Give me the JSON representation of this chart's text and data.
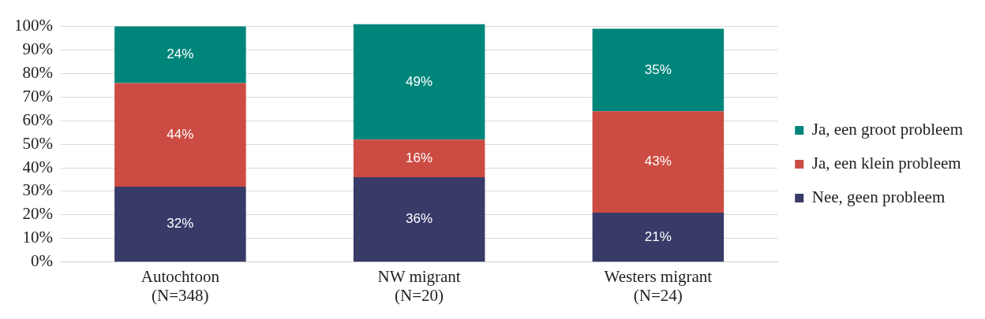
{
  "chart_data": {
    "type": "bar",
    "stacked": true,
    "categories": [
      "Autochtoon\n(N=348)",
      "NW migrant\n(N=20)",
      "Westers migrant\n(N=24)"
    ],
    "series": [
      {
        "name": "Nee, geen probleem",
        "color": "#383a68",
        "values": [
          32,
          36,
          21
        ]
      },
      {
        "name": "Ja, een klein probleem",
        "color": "#cc4b42",
        "values": [
          44,
          16,
          43
        ]
      },
      {
        "name": "Ja, een groot probleem",
        "color": "#00857a",
        "values": [
          24,
          49,
          35
        ]
      }
    ],
    "ylim": [
      0,
      101
    ],
    "yticks": [
      {
        "value": 0,
        "label": "0%"
      },
      {
        "value": 10,
        "label": "10%"
      },
      {
        "value": 20,
        "label": "20%"
      },
      {
        "value": 30,
        "label": "30%"
      },
      {
        "value": 40,
        "label": "40%"
      },
      {
        "value": 50,
        "label": "50%"
      },
      {
        "value": 60,
        "label": "60%"
      },
      {
        "value": 70,
        "label": "70%"
      },
      {
        "value": 80,
        "label": "80%"
      },
      {
        "value": 90,
        "label": "90%"
      },
      {
        "value": 100,
        "label": "100%"
      }
    ],
    "value_labels": [
      [
        "32%",
        "36%",
        "21%"
      ],
      [
        "44%",
        "16%",
        "43%"
      ],
      [
        "24%",
        "49%",
        "35%"
      ]
    ],
    "grid": "y",
    "legend": "right"
  }
}
